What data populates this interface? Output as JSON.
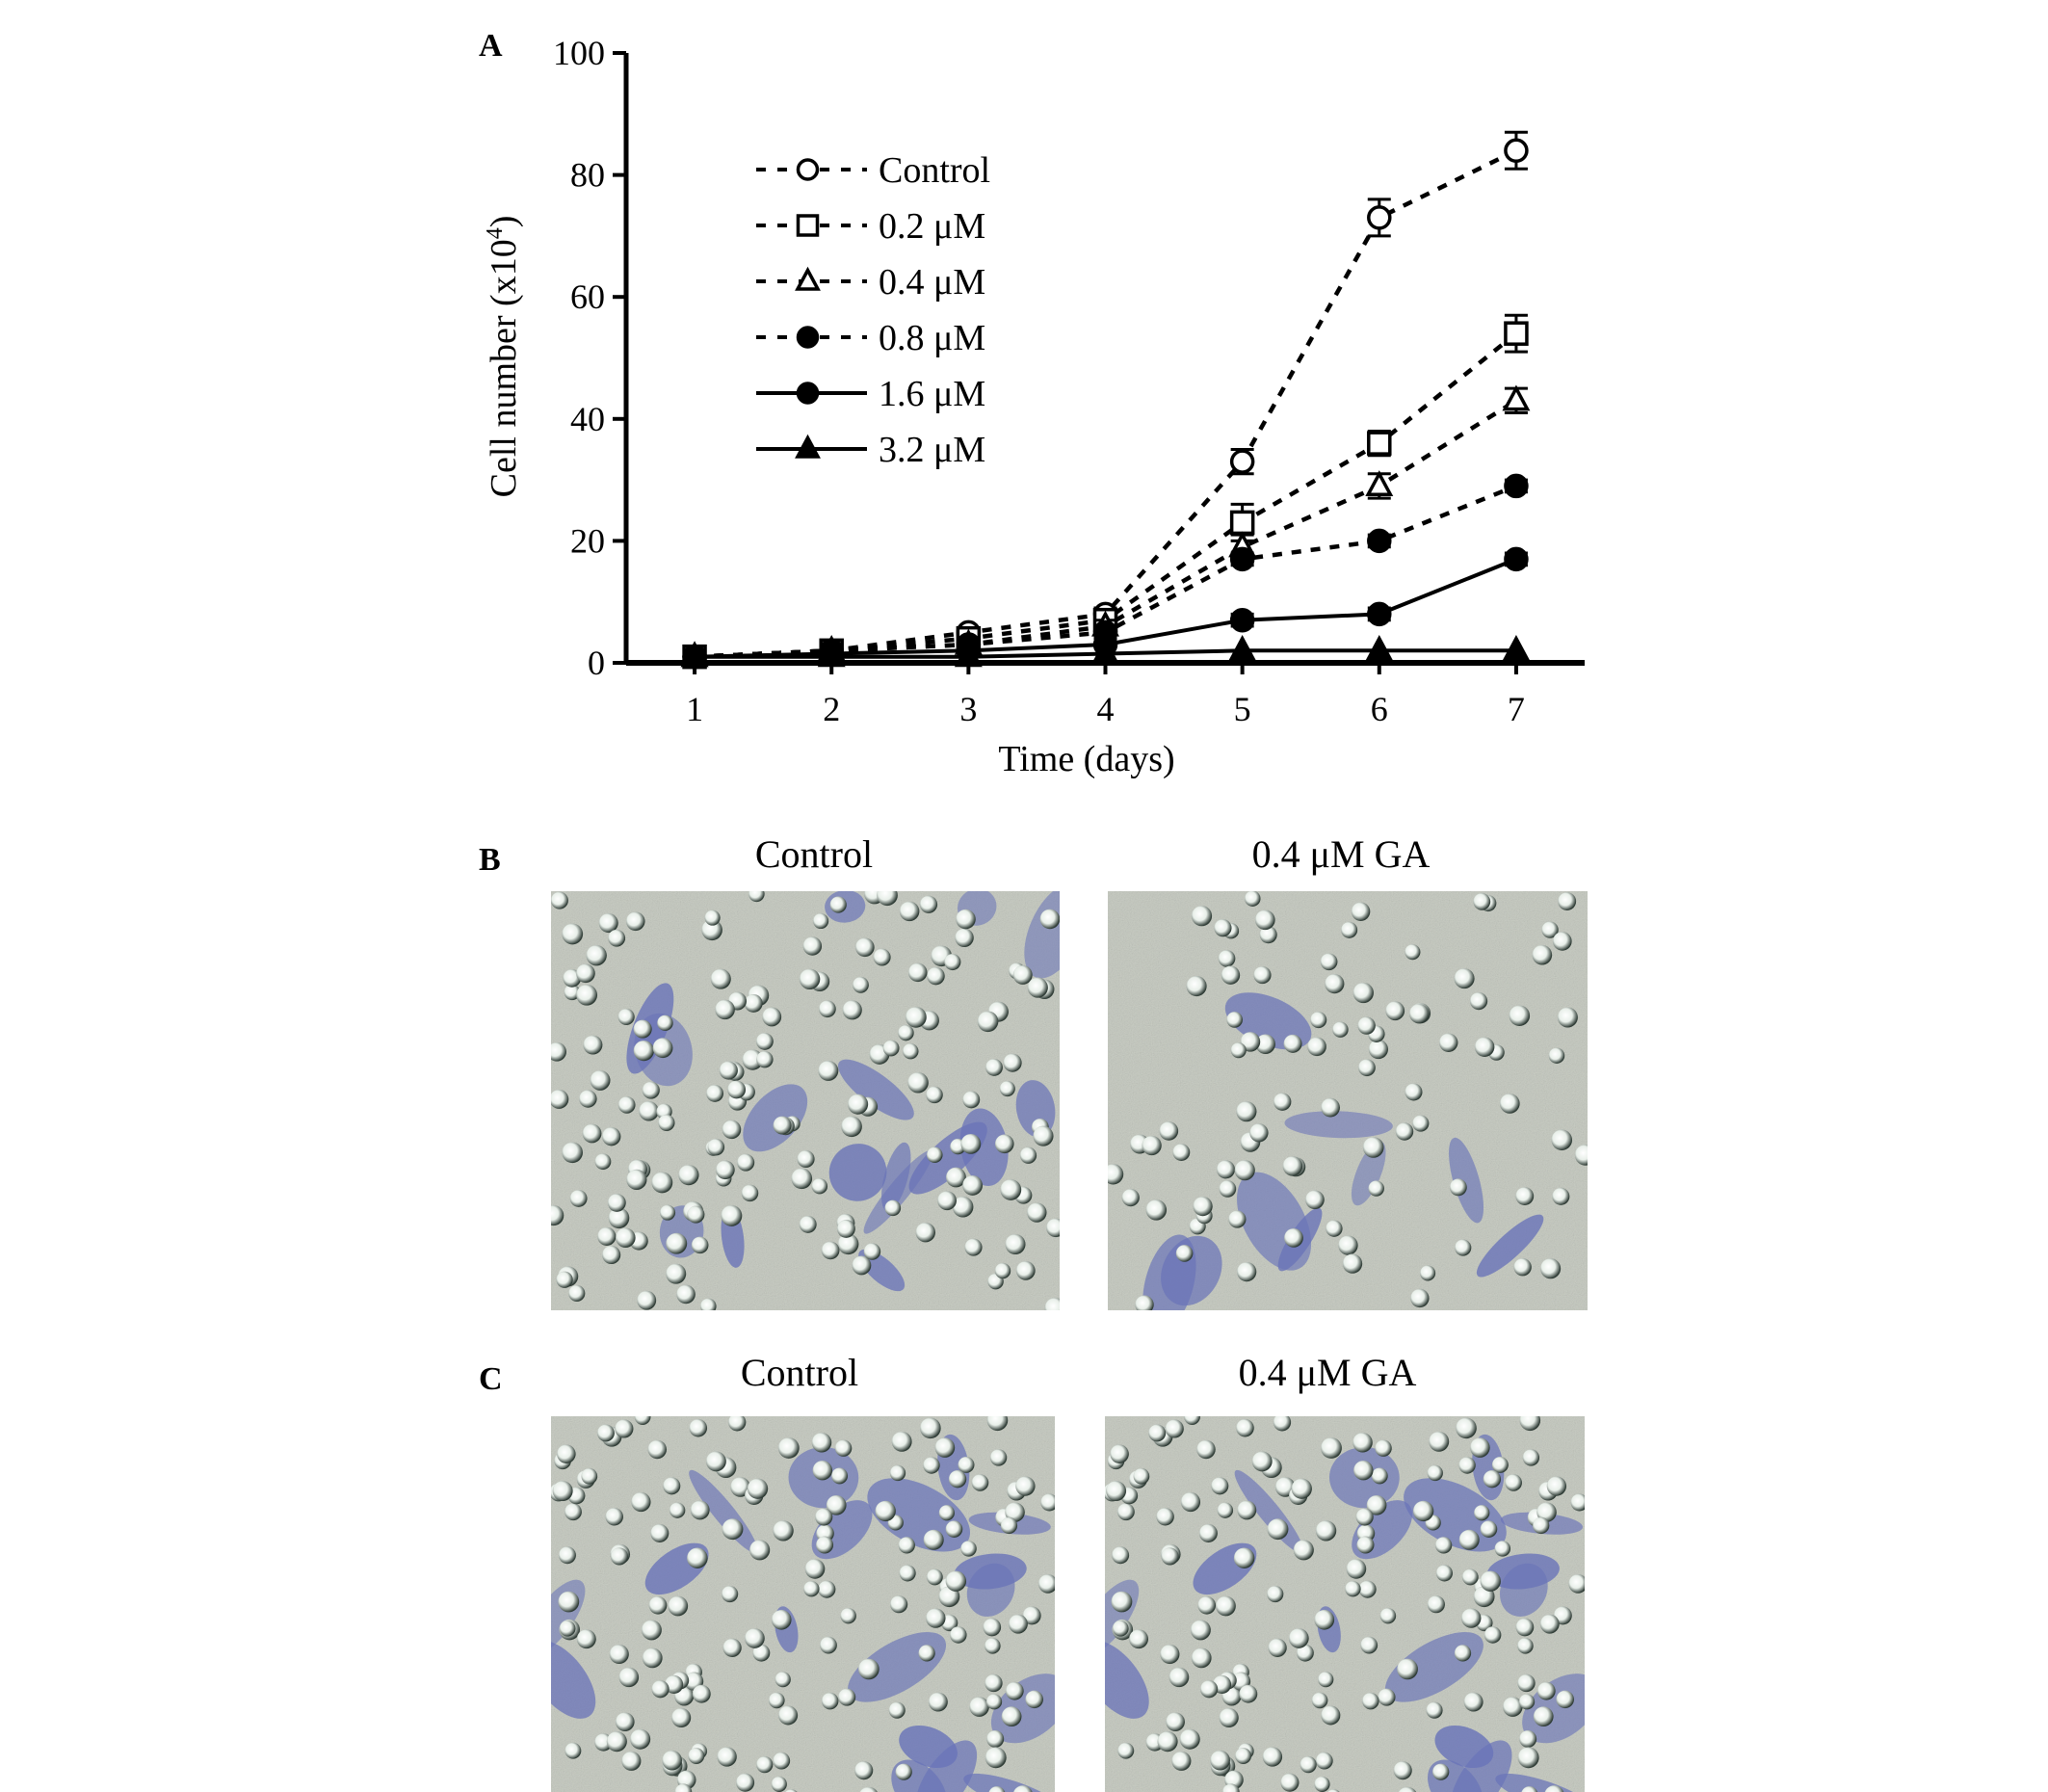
{
  "panels": {
    "a_label": "A",
    "b_label": "B",
    "c_label": "C"
  },
  "chart_data": {
    "type": "line",
    "title": "",
    "xlabel": "Time (days)",
    "ylabel_main": "Cell number (x10",
    "ylabel_sup": "4",
    "ylabel_tail": ")",
    "x": [
      1,
      2,
      3,
      4,
      5,
      6,
      7
    ],
    "xlim": [
      0.5,
      7.5
    ],
    "ylim": [
      0,
      100
    ],
    "xticks": [
      1,
      2,
      3,
      4,
      5,
      6,
      7
    ],
    "yticks": [
      0,
      20,
      40,
      60,
      80,
      100
    ],
    "grid": false,
    "legend_position": "top-left",
    "series": [
      {
        "name": "Control",
        "marker": "circle-open",
        "line": "dashed",
        "values": [
          1,
          2,
          5,
          8,
          33,
          73,
          84
        ],
        "errors": [
          0,
          0,
          0,
          1,
          2,
          3,
          3
        ]
      },
      {
        "name": "0.2 μM",
        "marker": "square-open",
        "line": "dashed",
        "values": [
          1,
          2,
          4,
          7,
          23,
          36,
          54
        ],
        "errors": [
          0,
          0,
          0,
          1,
          3,
          2,
          3
        ]
      },
      {
        "name": "0.4 μM",
        "marker": "triangle-open",
        "line": "dashed",
        "values": [
          1,
          2,
          3,
          6,
          19,
          29,
          43
        ],
        "errors": [
          0,
          0,
          0,
          1,
          2,
          2,
          2
        ]
      },
      {
        "name": "0.8 μM",
        "marker": "circle-filled",
        "line": "dashed",
        "values": [
          1,
          2,
          3,
          5,
          17,
          20,
          29
        ],
        "errors": [
          0,
          0,
          0,
          1,
          1,
          1,
          1
        ]
      },
      {
        "name": "1.6 μM",
        "marker": "circle-filled",
        "line": "solid",
        "values": [
          1,
          1.5,
          2,
          3,
          7,
          8,
          17
        ],
        "errors": [
          0,
          0,
          0,
          0,
          1,
          1,
          1
        ]
      },
      {
        "name": "3.2 μM",
        "marker": "triangle-filled",
        "line": "solid",
        "values": [
          1,
          1,
          1,
          1.5,
          2,
          2,
          2
        ],
        "errors": [
          0,
          0,
          0,
          0,
          0,
          0,
          0
        ]
      }
    ]
  },
  "micrographs": {
    "b_left_caption": "Control",
    "b_right_caption": "0.4 μM GA",
    "c_left_caption": "Control",
    "c_right_caption": "0.4 μM GA"
  }
}
